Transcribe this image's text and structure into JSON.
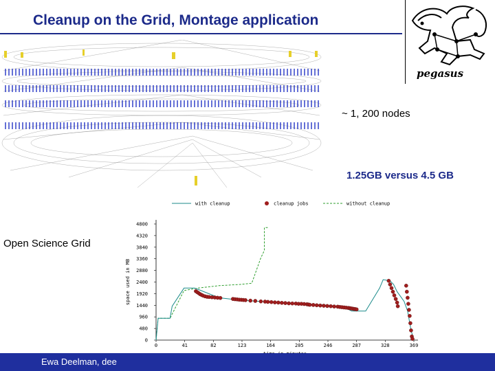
{
  "title": "Cleanup on the Grid, Montage application",
  "logo": {
    "text": "pegasus",
    "icon": "pegasus-logo-icon"
  },
  "annotations": {
    "nodes": "~ 1, 200 nodes",
    "storage": "1.25GB versus 4.5 GB",
    "grid": "Open Science Grid"
  },
  "footer": {
    "text": "Ewa Deelman, dee"
  },
  "colors": {
    "title": "#1c2a8a",
    "footer": "#1f2f9e",
    "line": "#1a8a8a",
    "nocleanup": "#2e9e2e",
    "jobs": "#a01e1e"
  },
  "chart_data": {
    "type": "line",
    "xlabel": "time in minutes",
    "ylabel": "space used in MB",
    "x_ticks": [
      "0",
      "41",
      "82",
      "123",
      "164",
      "205",
      "246",
      "287",
      "328",
      "369"
    ],
    "y_ticks": [
      "0",
      "480",
      "960",
      "1440",
      "1920",
      "2400",
      "2880",
      "3360",
      "3840",
      "4320",
      "4800"
    ],
    "xlim": [
      0,
      369
    ],
    "ylim": [
      0,
      4800
    ],
    "legend": [
      "with cleanup",
      "cleanup jobs",
      "without cleanup"
    ],
    "series": [
      {
        "name": "with cleanup",
        "x": [
          0,
          3,
          20,
          23,
          40,
          55,
          60,
          90,
          120,
          150,
          180,
          210,
          240,
          270,
          280,
          300,
          320,
          325,
          335,
          340,
          345,
          350,
          355,
          360,
          365,
          369
        ],
        "y": [
          0,
          900,
          900,
          1400,
          2150,
          2150,
          2100,
          1750,
          1650,
          1600,
          1550,
          1500,
          1450,
          1350,
          1200,
          1200,
          2150,
          2500,
          2450,
          2300,
          2000,
          1800,
          1600,
          1200,
          400,
          0
        ]
      },
      {
        "name": "without cleanup",
        "x": [
          0,
          3,
          20,
          40,
          60,
          90,
          120,
          137,
          150,
          155,
          155,
          160
        ],
        "y": [
          0,
          900,
          900,
          2050,
          2150,
          2250,
          2300,
          2350,
          3400,
          3700,
          4650,
          4650
        ]
      },
      {
        "name": "cleanup jobs",
        "x": [
          57,
          59,
          61,
          63,
          65,
          67,
          70,
          73,
          76,
          80,
          84,
          88,
          92,
          110,
          113,
          116,
          119,
          122,
          125,
          128,
          135,
          142,
          150,
          156,
          160,
          165,
          170,
          175,
          180,
          185,
          190,
          195,
          200,
          204,
          208,
          212,
          216,
          218,
          220,
          225,
          230,
          235,
          240,
          245,
          250,
          255,
          260,
          263,
          266,
          269,
          272,
          275,
          277,
          279,
          281,
          283,
          285,
          287,
          333,
          335,
          337,
          339,
          341,
          343,
          345,
          346,
          358,
          359,
          360,
          361,
          362,
          363,
          364,
          365,
          366,
          367
        ],
        "y": [
          2020,
          1980,
          1940,
          1900,
          1870,
          1840,
          1810,
          1790,
          1780,
          1770,
          1760,
          1750,
          1740,
          1700,
          1690,
          1680,
          1670,
          1665,
          1660,
          1650,
          1630,
          1620,
          1600,
          1590,
          1580,
          1570,
          1560,
          1550,
          1540,
          1530,
          1520,
          1515,
          1510,
          1500,
          1500,
          1490,
          1480,
          1470,
          1460,
          1450,
          1440,
          1430,
          1420,
          1410,
          1400,
          1390,
          1380,
          1370,
          1360,
          1350,
          1340,
          1330,
          1320,
          1310,
          1300,
          1290,
          1280,
          1270,
          2450,
          2300,
          2150,
          2000,
          1850,
          1700,
          1550,
          1400,
          2250,
          2000,
          1750,
          1500,
          1250,
          1000,
          700,
          400,
          150,
          50
        ]
      }
    ]
  }
}
